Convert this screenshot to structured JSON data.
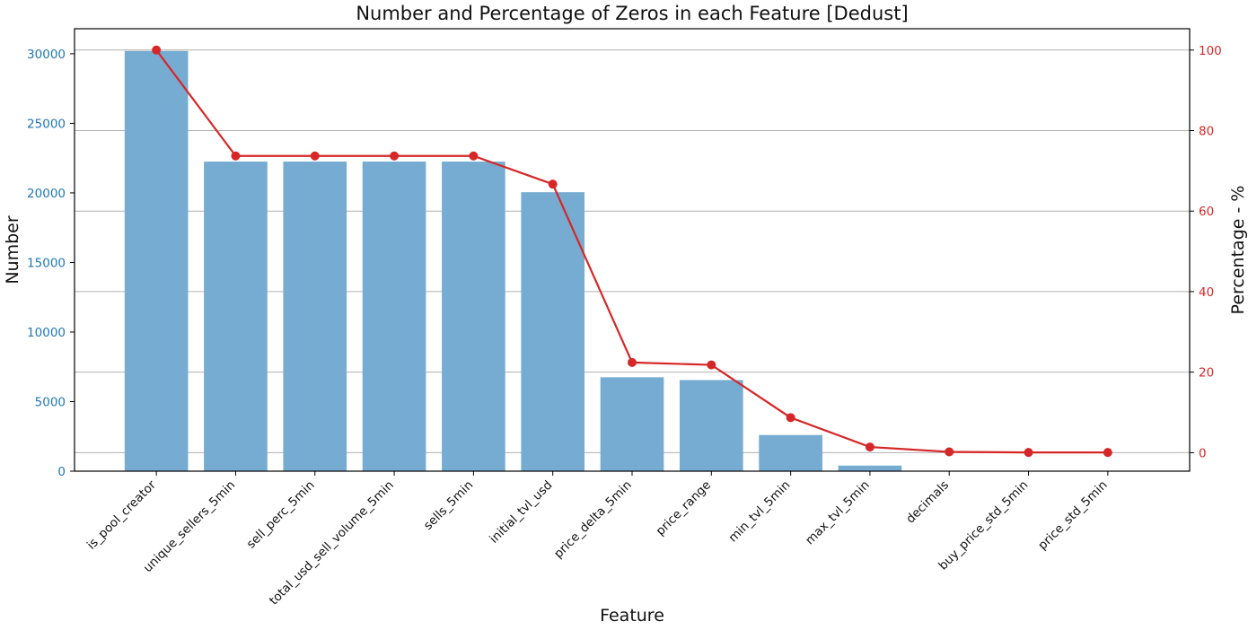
{
  "chart_data": {
    "type": "bar",
    "title": "Number and Percentage of Zeros in each Feature [Dedust]",
    "xlabel": "Feature",
    "ylabel": "Number",
    "y2label": "Percentage - %",
    "categories": [
      "is_pool_creator",
      "unique_sellers_5min",
      "sell_perc_5min",
      "total_usd_sell_volume_5min",
      "sells_5min",
      "initial_tvl_usd",
      "price_delta_5min",
      "price_range",
      "min_tvl_5min",
      "max_tvl_5min",
      "decimals",
      "buy_price_std_5min",
      "price_std_5min"
    ],
    "series": [
      {
        "axis": "left",
        "kind": "bar",
        "color": "#76acd1",
        "values": [
          30200,
          22250,
          22250,
          22250,
          22250,
          20050,
          6750,
          6550,
          2600,
          400,
          0,
          0,
          0
        ]
      },
      {
        "axis": "right",
        "kind": "line",
        "color": "#d62728",
        "values": [
          100,
          73.7,
          73.7,
          73.7,
          73.7,
          66.7,
          22.4,
          21.8,
          8.7,
          1.4,
          0.2,
          0.05,
          0.05
        ]
      }
    ],
    "ylim": [
      0,
      31800
    ],
    "yticks": [
      0,
      5000,
      10000,
      15000,
      20000,
      25000,
      30000
    ],
    "y2lim": [
      -4.6,
      105.3
    ],
    "y2ticks": [
      0,
      20,
      40,
      60,
      80,
      100
    ],
    "grid": "horizontal, right axis",
    "left_tick_color": "#1f77b4",
    "right_tick_color": "#d62728"
  }
}
